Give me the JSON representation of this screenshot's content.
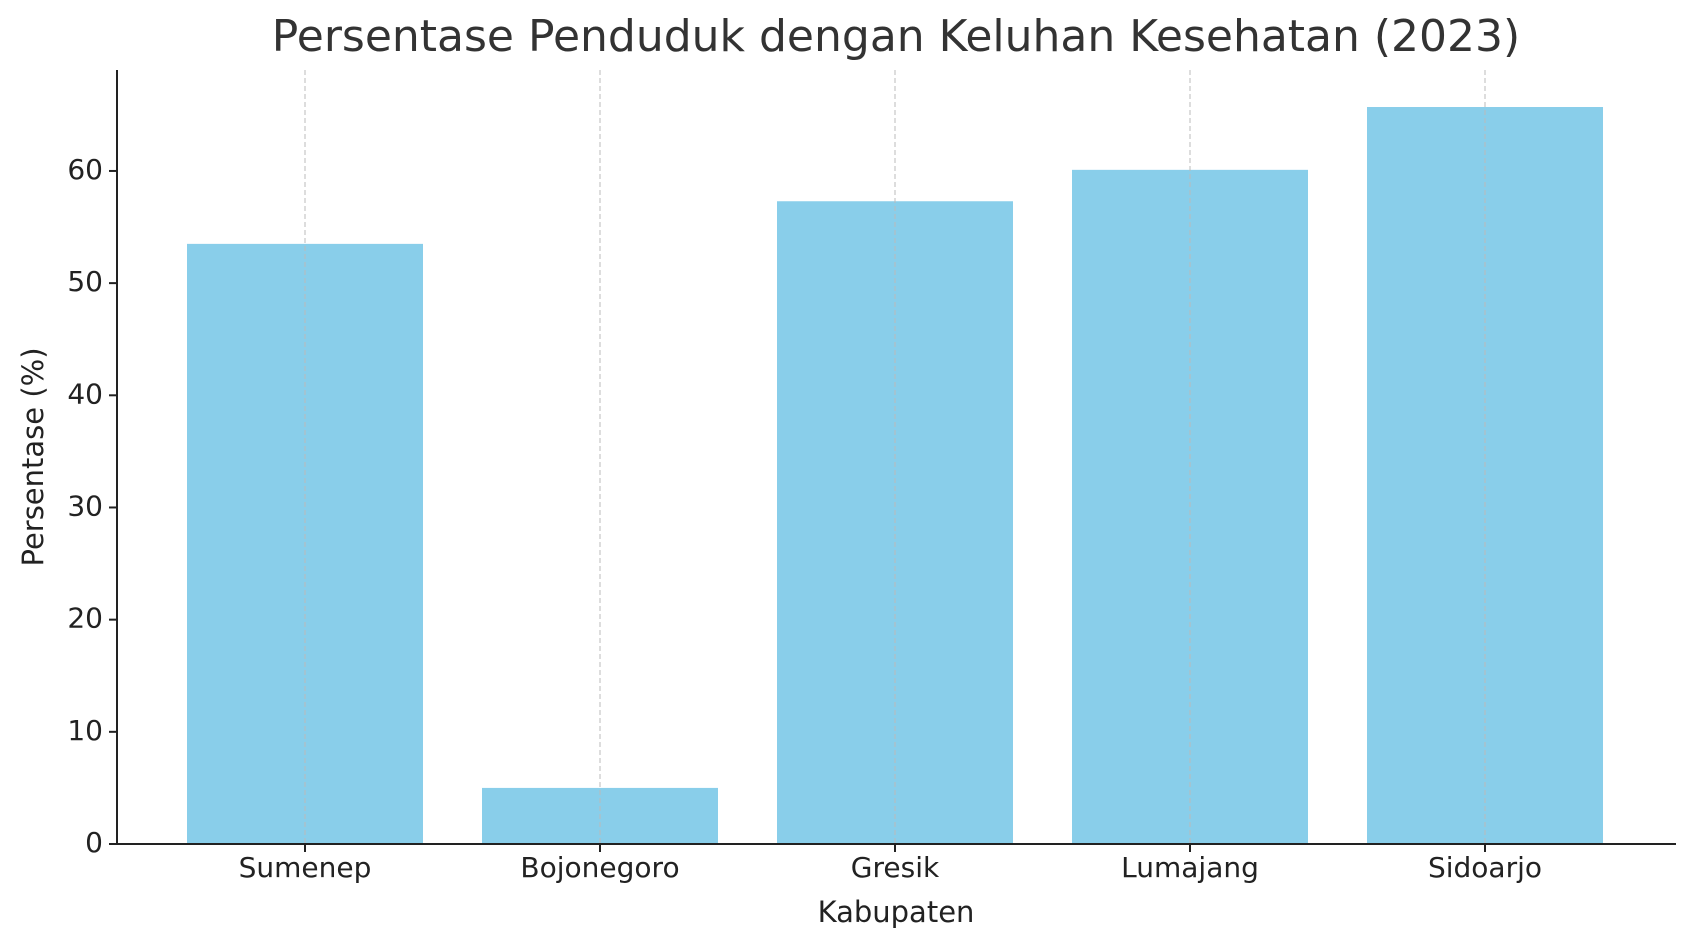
{
  "chart_data": {
    "type": "bar",
    "title": "Persentase Penduduk dengan Keluhan Kesehatan (2023)",
    "x_label": "Kabupaten",
    "y_label": "Persentase (%)",
    "categories": [
      "Sumenep",
      "Bojonegoro",
      "Gresik",
      "Lumajang",
      "Sidoarjo"
    ],
    "values": [
      53.5,
      5.0,
      57.3,
      60.1,
      65.7
    ],
    "color": "#89ceea",
    "ylim": [
      0,
      69
    ],
    "yticks": [
      0,
      10,
      20,
      30,
      40,
      50,
      60
    ],
    "grid": "x"
  }
}
